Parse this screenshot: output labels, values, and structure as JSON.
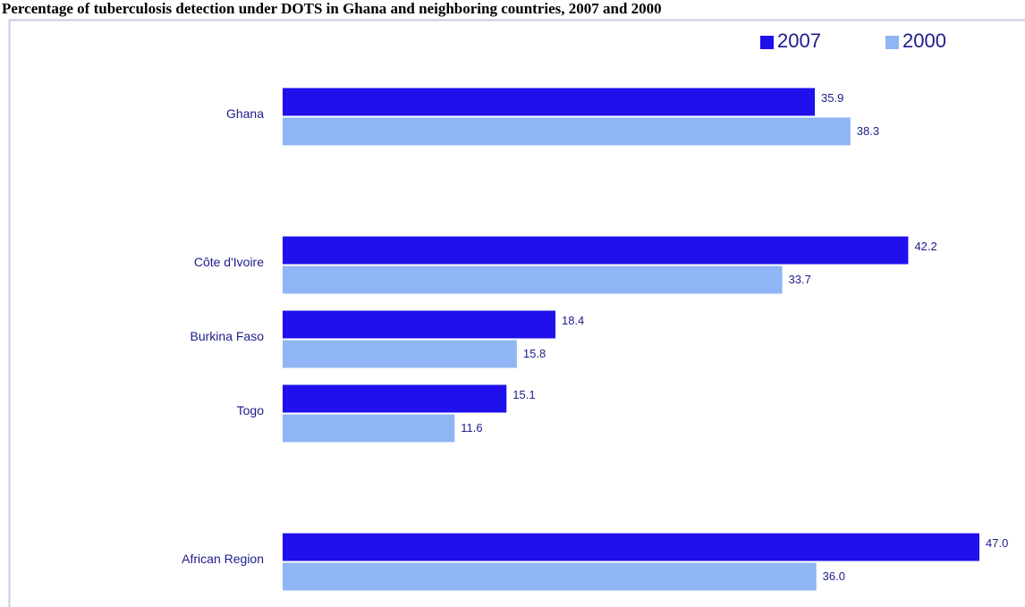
{
  "chart_data": {
    "type": "bar",
    "orientation": "horizontal",
    "title": "Percentage of tuberculosis detection under DOTS in Ghana and neighboring countries, 2007 and 2000",
    "categories": [
      "Ghana",
      null,
      "Côte d'Ivoire",
      "Burkina Faso",
      "Togo",
      null,
      "African Region"
    ],
    "series": [
      {
        "name": "2007",
        "color": "#1f10ec",
        "values": [
          35.9,
          null,
          42.2,
          18.4,
          15.1,
          null,
          47.0
        ],
        "value_labels": [
          "35.9",
          null,
          "42.2",
          "18.4",
          "15.1",
          null,
          "47.0"
        ]
      },
      {
        "name": "2000",
        "color": "#8fb5f5",
        "values": [
          38.3,
          null,
          33.7,
          15.8,
          11.6,
          null,
          36.0
        ],
        "value_labels": [
          "38.3",
          null,
          "33.7",
          "15.8",
          "11.6",
          null,
          "36.0"
        ]
      }
    ],
    "legend": "top-right"
  }
}
